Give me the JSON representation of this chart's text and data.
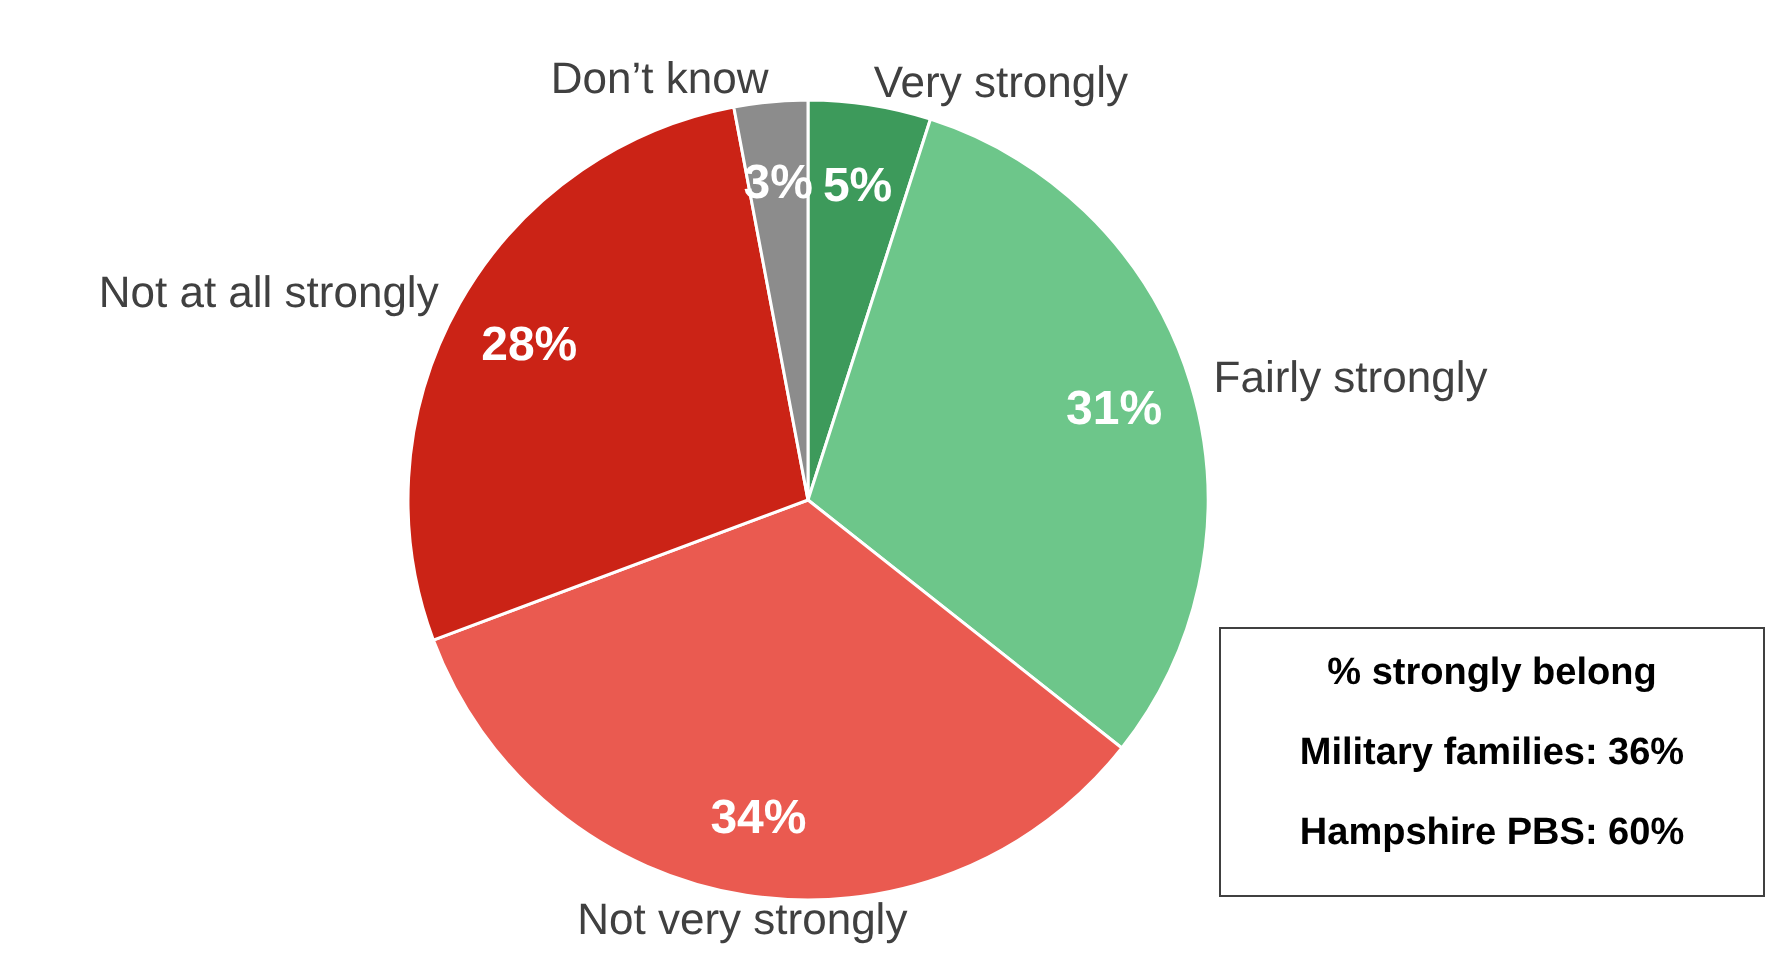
{
  "chart_data": {
    "type": "pie",
    "categories": [
      "Very strongly",
      "Fairly strongly",
      "Not very strongly",
      "Not at all strongly",
      "Don’t know"
    ],
    "values": [
      5,
      31,
      34,
      28,
      3
    ],
    "colors": [
      "#3d9a5b",
      "#6dc68a",
      "#ea5a50",
      "#cb2316",
      "#8c8c8c"
    ],
    "value_labels": [
      "5%",
      "31%",
      "34%",
      "28%",
      "3%"
    ],
    "annotations": [
      "% strongly belong",
      "Military families: 36%",
      "Hampshire PBS: 60%"
    ]
  }
}
